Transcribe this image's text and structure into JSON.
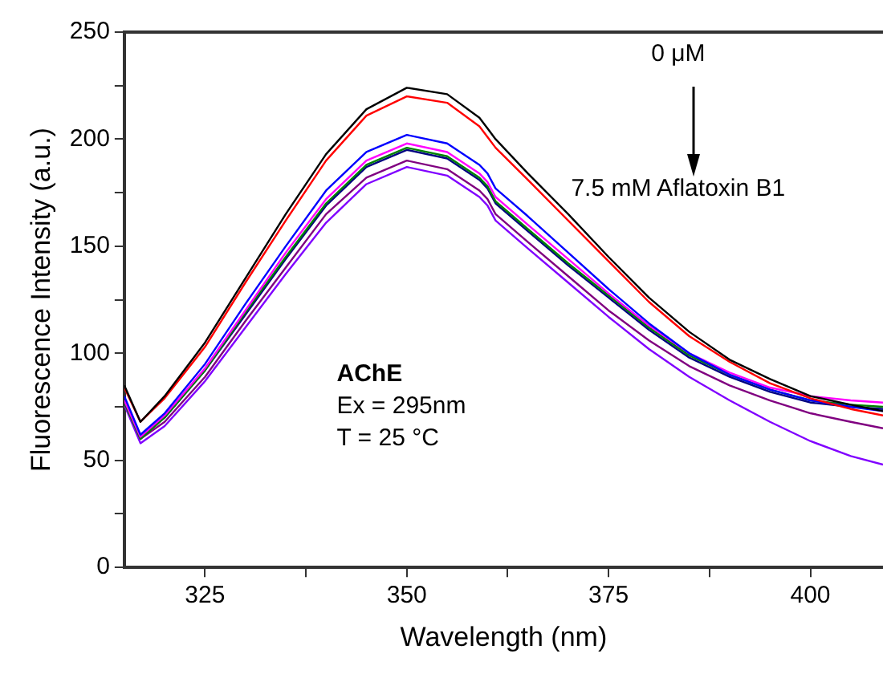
{
  "chart_data": {
    "type": "line",
    "xlabel": "Wavelength (nm)",
    "ylabel": "Fluorescence Intensity (a.u.)",
    "annotations": [
      "0 μM",
      "7.5 mM Aflatoxin B1",
      "AChE",
      "Ex = 295nm",
      "T = 25 °C"
    ],
    "x": [
      315,
      317,
      320,
      325,
      330,
      335,
      340,
      345,
      350,
      355,
      359,
      360,
      361,
      365,
      370,
      375,
      380,
      385,
      390,
      395,
      400,
      405,
      409
    ],
    "series": [
      {
        "color": "#000000",
        "values": [
          85,
          68,
          80,
          105,
          135,
          165,
          193,
          214,
          224,
          221,
          210,
          205,
          200,
          184,
          165,
          145,
          126,
          110,
          97,
          88,
          80,
          76,
          73
        ]
      },
      {
        "color": "#ff0000",
        "values": [
          84,
          68,
          79,
          103,
          133,
          162,
          190,
          211,
          220,
          217,
          206,
          201,
          196,
          181,
          162,
          143,
          124,
          108,
          96,
          86,
          79,
          74,
          71
        ]
      },
      {
        "color": "#0000ff",
        "values": [
          80,
          62,
          72,
          95,
          123,
          150,
          176,
          194,
          202,
          198,
          188,
          184,
          177,
          164,
          147,
          130,
          114,
          100,
          90,
          83,
          78,
          75,
          73
        ]
      },
      {
        "color": "#ff00ff",
        "values": [
          78,
          61,
          71,
          93,
          120,
          147,
          172,
          190,
          198,
          194,
          184,
          180,
          173,
          160,
          144,
          128,
          113,
          100,
          91,
          84,
          80,
          78,
          77
        ]
      },
      {
        "color": "#008000",
        "values": [
          77,
          60,
          70,
          92,
          119,
          145,
          170,
          188,
          196,
          192,
          182,
          178,
          171,
          158,
          142,
          127,
          112,
          99,
          90,
          83,
          78,
          76,
          75
        ]
      },
      {
        "color": "#000080",
        "values": [
          78,
          61,
          70,
          92,
          118,
          144,
          169,
          187,
          195,
          191,
          181,
          177,
          170,
          157,
          141,
          126,
          111,
          98,
          89,
          82,
          77,
          75,
          74
        ]
      },
      {
        "color": "#800080",
        "values": [
          77,
          60,
          68,
          89,
          115,
          140,
          165,
          182,
          190,
          186,
          176,
          172,
          165,
          152,
          136,
          120,
          106,
          94,
          85,
          78,
          72,
          68,
          65
        ]
      },
      {
        "color": "#8000ff",
        "values": [
          76,
          58,
          66,
          87,
          112,
          137,
          161,
          179,
          187,
          183,
          173,
          169,
          162,
          149,
          133,
          117,
          102,
          89,
          78,
          68,
          59,
          52,
          48
        ]
      }
    ],
    "xlim": [
      315,
      409
    ],
    "ylim": [
      0,
      250
    ],
    "xticks": [
      325,
      {
        "value": 337.5,
        "label": null
      },
      350,
      {
        "value": 362.5,
        "label": null
      },
      375,
      {
        "value": 387.5,
        "label": null
      },
      400
    ],
    "yticks": [
      0,
      {
        "value": 25,
        "label": null
      },
      50,
      {
        "value": 75,
        "label": null
      },
      100,
      {
        "value": 125,
        "label": null
      },
      150,
      {
        "value": 175,
        "label": null
      },
      200,
      {
        "value": 225,
        "label": null
      },
      250
    ],
    "grid": false,
    "legend": false,
    "marker": "none",
    "line_style": "solid"
  }
}
